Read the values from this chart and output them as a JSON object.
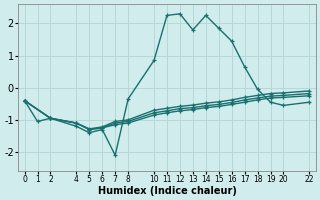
{
  "xlabel": "Humidex (Indice chaleur)",
  "bg_color": "#d0ecec",
  "grid_color": "#b8d8d8",
  "line_color": "#1a7070",
  "xlim": [
    -0.5,
    22.5
  ],
  "ylim": [
    -2.6,
    2.6
  ],
  "yticks": [
    -2,
    -1,
    0,
    1,
    2
  ],
  "xticks": [
    0,
    1,
    2,
    4,
    5,
    6,
    7,
    8,
    10,
    11,
    12,
    13,
    14,
    15,
    16,
    17,
    18,
    19,
    20,
    22
  ],
  "series": [
    {
      "x": [
        0,
        1,
        2,
        4,
        5,
        6,
        7,
        8,
        10,
        11,
        12,
        13,
        14,
        15,
        16,
        17,
        18,
        19,
        20,
        22
      ],
      "y": [
        -0.4,
        -1.05,
        -0.95,
        -1.2,
        -1.4,
        -1.3,
        -2.1,
        -0.35,
        0.85,
        2.25,
        2.3,
        1.8,
        2.25,
        1.85,
        1.45,
        0.65,
        -0.05,
        -0.45,
        -0.55,
        -0.45
      ]
    },
    {
      "x": [
        0,
        2,
        4,
        5,
        6,
        7,
        8,
        10,
        11,
        12,
        13,
        14,
        15,
        16,
        17,
        18,
        19,
        20,
        22
      ],
      "y": [
        -0.4,
        -0.95,
        -1.1,
        -1.3,
        -1.25,
        -1.15,
        -1.1,
        -0.85,
        -0.78,
        -0.72,
        -0.68,
        -0.62,
        -0.58,
        -0.52,
        -0.45,
        -0.38,
        -0.32,
        -0.3,
        -0.25
      ]
    },
    {
      "x": [
        0,
        2,
        4,
        5,
        6,
        7,
        8,
        10,
        11,
        12,
        13,
        14,
        15,
        16,
        17,
        18,
        19,
        20,
        22
      ],
      "y": [
        -0.4,
        -0.95,
        -1.1,
        -1.3,
        -1.25,
        -1.1,
        -1.05,
        -0.78,
        -0.72,
        -0.65,
        -0.62,
        -0.56,
        -0.52,
        -0.46,
        -0.38,
        -0.32,
        -0.26,
        -0.24,
        -0.18
      ]
    },
    {
      "x": [
        0,
        2,
        4,
        5,
        6,
        7,
        8,
        10,
        11,
        12,
        13,
        14,
        15,
        16,
        17,
        18,
        19,
        20,
        22
      ],
      "y": [
        -0.4,
        -0.95,
        -1.1,
        -1.28,
        -1.22,
        -1.05,
        -1.0,
        -0.7,
        -0.64,
        -0.58,
        -0.54,
        -0.48,
        -0.44,
        -0.38,
        -0.3,
        -0.24,
        -0.18,
        -0.16,
        -0.1
      ]
    }
  ]
}
